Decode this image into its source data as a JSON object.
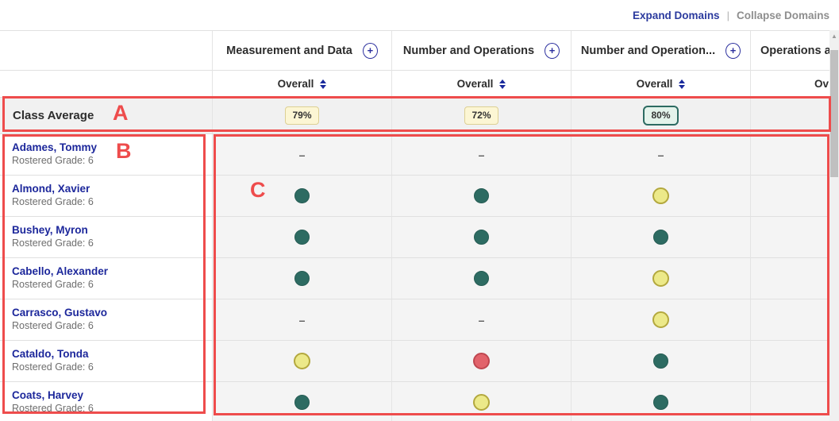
{
  "toolbar": {
    "expand_label": "Expand Domains",
    "separator": "|",
    "collapse_label": "Collapse Domains"
  },
  "grid": {
    "domains": [
      {
        "label": "Measurement and Data",
        "expand_icon": "plus-circle",
        "sort_label": "Overall",
        "clipped": false
      },
      {
        "label": "Number and Operations",
        "expand_icon": "plus-circle",
        "sort_label": "Overall",
        "clipped": false
      },
      {
        "label": "Number and Operation...",
        "expand_icon": "plus-circle",
        "sort_label": "Overall",
        "clipped": false
      },
      {
        "label": "Operations a",
        "expand_icon": null,
        "sort_label": "Ov",
        "clipped": true
      }
    ],
    "class_average": {
      "label": "Class Average",
      "badges": [
        {
          "value": "79%",
          "level": "warn"
        },
        {
          "value": "72%",
          "level": "warn"
        },
        {
          "value": "80%",
          "level": "good"
        },
        null
      ]
    },
    "no_data_symbol": "–",
    "students": [
      {
        "name": "Adames, Tommy",
        "meta": "Rostered Grade: 6",
        "scores": [
          "none",
          "none",
          "none",
          "blank"
        ]
      },
      {
        "name": "Almond, Xavier",
        "meta": "Rostered Grade: 6",
        "scores": [
          "good",
          "good",
          "warn",
          "blank"
        ]
      },
      {
        "name": "Bushey, Myron",
        "meta": "Rostered Grade: 6",
        "scores": [
          "good",
          "good",
          "good",
          "blank"
        ]
      },
      {
        "name": "Cabello, Alexander",
        "meta": "Rostered Grade: 6",
        "scores": [
          "good",
          "good",
          "warn",
          "blank"
        ]
      },
      {
        "name": "Carrasco, Gustavo",
        "meta": "Rostered Grade: 6",
        "scores": [
          "none",
          "none",
          "warn",
          "blank"
        ]
      },
      {
        "name": "Cataldo, Tonda",
        "meta": "Rostered Grade: 6",
        "scores": [
          "warn",
          "poor",
          "good",
          "blank"
        ]
      },
      {
        "name": "Coats, Harvey",
        "meta": "Rostered Grade: 6",
        "scores": [
          "good",
          "warn",
          "good",
          "blank"
        ]
      }
    ]
  },
  "annotations": {
    "letter_a": "A",
    "letter_b": "B",
    "letter_c": "C"
  },
  "icons": {
    "expand_domain": "plus-circle-icon",
    "sort": "sort-arrows-icon",
    "scroll_up": "▲"
  },
  "colors": {
    "link_blue": "#2b3a9e",
    "annotation_red": "#ee4c4c",
    "good_dot": "#2d6b62",
    "warn_dot_fill": "#ece989",
    "warn_dot_border": "#b3a83e",
    "poor_dot_fill": "#e2636b",
    "poor_dot_border": "#bf4750",
    "warn_badge_bg": "#fcf6d4",
    "good_badge_bg": "#e4f3eb"
  }
}
